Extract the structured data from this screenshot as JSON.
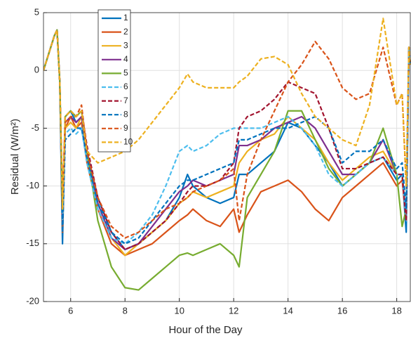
{
  "chart_data": {
    "type": "line",
    "xlabel": "Hour of the Day",
    "ylabel": "Residual (W/m²)",
    "xlim": [
      5,
      18.5
    ],
    "ylim": [
      -20,
      5
    ],
    "xticks": [
      6,
      8,
      10,
      12,
      14,
      16,
      18
    ],
    "yticks": [
      -20,
      -15,
      -10,
      -5,
      0,
      5
    ],
    "grid": true,
    "legend": "upper-left",
    "x": [
      5,
      5.4,
      5.5,
      5.6,
      5.7,
      5.8,
      6,
      6.2,
      6.4,
      6.6,
      7,
      7.5,
      8,
      8.5,
      9,
      9.5,
      10,
      10.3,
      10.5,
      11,
      11.5,
      12,
      12.2,
      12.5,
      13,
      13.5,
      14,
      14.5,
      15,
      15.5,
      16,
      16.5,
      17,
      17.5,
      18,
      18.2,
      18.35,
      18.45,
      18.5
    ],
    "series": [
      {
        "name": "1",
        "color": "#0072BD",
        "dashed": false,
        "values": [
          0,
          3,
          3.5,
          -1,
          -15,
          -4,
          -3.5,
          -4.5,
          -4,
          -7,
          -11,
          -14,
          -15.5,
          -15,
          -14,
          -13,
          -11,
          -9,
          -10,
          -11,
          -11.5,
          -11,
          -9,
          -9,
          -8,
          -7,
          -4.5,
          -5,
          -6.5,
          -8,
          -10,
          -9,
          -8,
          -7.5,
          -9.5,
          -9,
          -14,
          2,
          0.5
        ]
      },
      {
        "name": "2",
        "color": "#D95319",
        "dashed": false,
        "values": [
          0,
          3,
          3.5,
          -1,
          -14,
          -5,
          -4,
          -5,
          -4.5,
          -8,
          -12,
          -15,
          -16,
          -15.5,
          -15,
          -14,
          -13,
          -12.5,
          -12,
          -13,
          -13.5,
          -12,
          -14,
          -12.5,
          -10.5,
          -10,
          -9.5,
          -10.5,
          -12,
          -13,
          -11,
          -10,
          -9,
          -8,
          -10,
          -9.5,
          -13,
          2,
          0.5
        ]
      },
      {
        "name": "3",
        "color": "#EDB120",
        "dashed": false,
        "values": [
          0,
          3,
          3.5,
          -1,
          -13,
          -5,
          -4.5,
          -5,
          -4,
          -7.5,
          -11.5,
          -14.5,
          -16,
          -15,
          -14,
          -13,
          -11.5,
          -11,
          -10.5,
          -11,
          -10.5,
          -10,
          -8,
          -7,
          -6,
          -5.5,
          -4,
          -5,
          -6,
          -8,
          -9.5,
          -8.5,
          -7.5,
          -7,
          -9,
          -9,
          -13,
          2,
          0.5
        ]
      },
      {
        "name": "4",
        "color": "#7E2F8E",
        "dashed": false,
        "values": [
          0,
          3,
          3.5,
          -1,
          -13,
          -4.5,
          -4,
          -4.5,
          -4,
          -7,
          -11.5,
          -14.5,
          -15.5,
          -15,
          -13.5,
          -12,
          -10.5,
          -10,
          -9.5,
          -10,
          -9.5,
          -9,
          -6.5,
          -6.5,
          -6,
          -5,
          -4.5,
          -4,
          -5,
          -7,
          -9,
          -9,
          -8,
          -6,
          -9,
          -9,
          -13,
          2,
          0.5
        ]
      },
      {
        "name": "5",
        "color": "#77AC30",
        "dashed": false,
        "values": [
          0,
          3,
          3.5,
          -1,
          -12,
          -4,
          -3.5,
          -4,
          -3.5,
          -7,
          -13,
          -17,
          -18.8,
          -19,
          -18,
          -17,
          -16,
          -15.8,
          -16,
          -15.5,
          -15,
          -16,
          -17,
          -11,
          -9,
          -7,
          -3.5,
          -3.5,
          -6,
          -8.5,
          -10,
          -9,
          -8,
          -5,
          -9,
          -13.5,
          -12,
          2,
          0.5
        ]
      },
      {
        "name": "6",
        "color": "#4DBEEE",
        "dashed": true,
        "values": [
          0,
          3,
          3.5,
          -1,
          -13,
          -5.5,
          -5,
          -5.5,
          -5,
          -8,
          -12,
          -14.5,
          -15,
          -14,
          -12.5,
          -10,
          -7,
          -6.5,
          -7,
          -6.5,
          -5.5,
          -5,
          -5,
          -5,
          -5,
          -4.5,
          -4,
          -5,
          -6.5,
          -9,
          -10,
          -9,
          -8,
          -7.5,
          -9,
          -9,
          -13,
          2,
          0.5
        ]
      },
      {
        "name": "7",
        "color": "#A2142F",
        "dashed": true,
        "values": [
          0,
          3,
          3.5,
          -1,
          -12,
          -4,
          -3.5,
          -4,
          -3.5,
          -6.5,
          -11,
          -14,
          -15.5,
          -15,
          -14,
          -13,
          -11.5,
          -10.5,
          -10,
          -10,
          -9.5,
          -8,
          -5,
          -4,
          -3.5,
          -2.5,
          -1,
          -1.5,
          -2,
          -5,
          -8.5,
          -8.5,
          -8,
          -7.5,
          -9,
          -9,
          -13,
          2,
          0.5
        ]
      },
      {
        "name": "8",
        "color": "#0072BD",
        "dashed": true,
        "values": [
          0,
          3,
          3.5,
          -1,
          -14,
          -6,
          -5.5,
          -5,
          -5,
          -7.5,
          -11.5,
          -14,
          -15,
          -14.5,
          -13,
          -11.5,
          -10,
          -9.5,
          -9.5,
          -9,
          -8.5,
          -8,
          -6,
          -6,
          -5.5,
          -5,
          -5,
          -4.5,
          -4,
          -5,
          -8,
          -7,
          -7,
          -6,
          -8.5,
          -8,
          -12,
          2,
          0.5
        ]
      },
      {
        "name": "9",
        "color": "#D95319",
        "dashed": true,
        "values": [
          0,
          3,
          3.5,
          -1,
          -11,
          -4.5,
          -4,
          -4,
          -3,
          -7,
          -11,
          -13.5,
          -14.5,
          -14,
          -13,
          -12,
          -11.5,
          -11,
          -10.5,
          -10,
          -9.5,
          -8.5,
          -13,
          -9,
          -6,
          -3.5,
          -1,
          0.5,
          2.5,
          1,
          -1.5,
          -2.5,
          -2,
          2,
          -3,
          -2,
          -10,
          2,
          0.5
        ]
      },
      {
        "name": "10",
        "color": "#EDB120",
        "dashed": true,
        "values": [
          0,
          3,
          3.5,
          -1,
          -12,
          -4,
          -3.5,
          -4,
          -3.5,
          -7,
          -8,
          -7.5,
          -7,
          -6,
          -4.5,
          -3,
          -1.5,
          -0.3,
          -1,
          -1.5,
          -1.5,
          -1.5,
          -1,
          -0.5,
          1,
          1.2,
          0.5,
          -2,
          -4,
          -5,
          -6,
          -6.5,
          -3,
          4.5,
          -3,
          -2,
          -10,
          2,
          0.5
        ]
      }
    ]
  }
}
